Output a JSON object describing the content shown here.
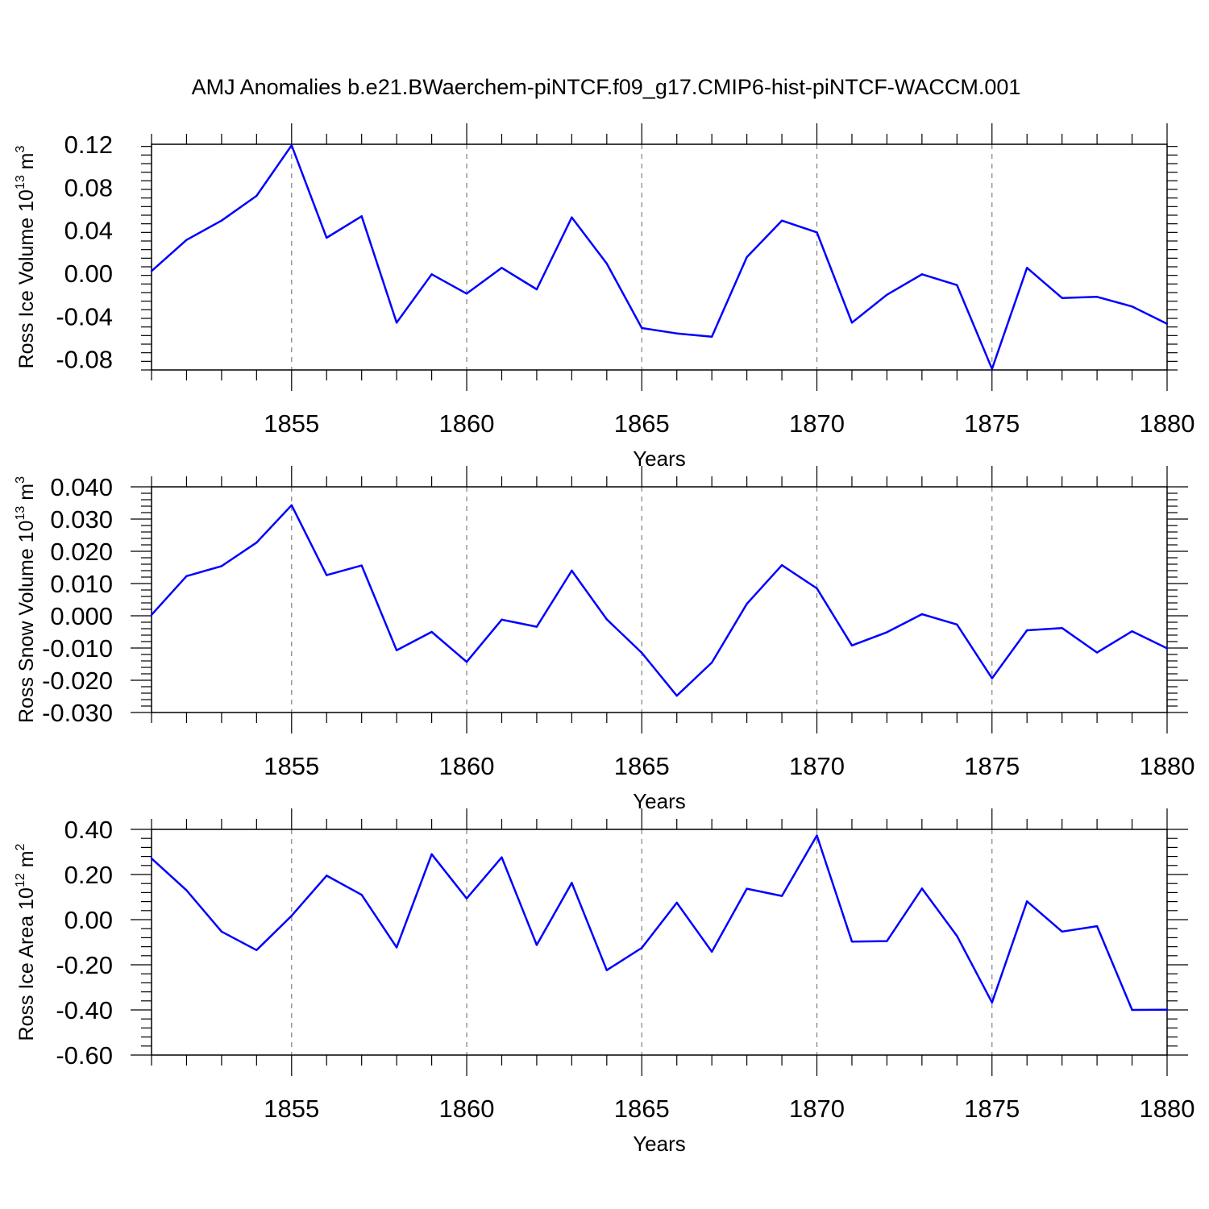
{
  "title": "AMJ Anomalies b.e21.BWaerchem-piNTCF.f09_g17.CMIP6-hist-piNTCF-WACCM.001",
  "colors": {
    "line": "#0000ff",
    "axis": "#000000",
    "grid": "#808080"
  },
  "chart_data": [
    {
      "type": "line",
      "ylabel": {
        "text": "Ross Ice Volume 10",
        "exp": "13",
        "unit": "m",
        "unit_exp": "3"
      },
      "xlabel": "Years",
      "xlim": [
        1851,
        1880
      ],
      "ylim": [
        -0.09,
        0.12
      ],
      "yticks": [
        -0.08,
        -0.04,
        0.0,
        0.04,
        0.08,
        0.12
      ],
      "ytick_labels": [
        "-0.08",
        "-0.04",
        "0.00",
        "0.04",
        "0.08",
        "0.12"
      ],
      "xticks": [
        1855,
        1860,
        1865,
        1870,
        1875,
        1880
      ],
      "xtick_labels": [
        "1855",
        "1860",
        "1865",
        "1870",
        "1875",
        "1880"
      ],
      "x": [
        1851,
        1852,
        1853,
        1854,
        1855,
        1856,
        1857,
        1858,
        1859,
        1860,
        1861,
        1862,
        1863,
        1864,
        1865,
        1866,
        1867,
        1868,
        1869,
        1870,
        1871,
        1872,
        1873,
        1874,
        1875,
        1876,
        1877,
        1878,
        1879,
        1880
      ],
      "values": [
        0.002,
        0.031,
        0.049,
        0.072,
        0.119,
        0.033,
        0.053,
        -0.046,
        -0.001,
        -0.019,
        0.005,
        -0.015,
        0.052,
        0.009,
        -0.051,
        -0.056,
        -0.059,
        0.015,
        0.049,
        0.038,
        -0.046,
        -0.02,
        -0.001,
        -0.011,
        -0.089,
        0.005,
        -0.023,
        -0.022,
        -0.031,
        -0.047
      ]
    },
    {
      "type": "line",
      "ylabel": {
        "text": "Ross Snow Volume 10",
        "exp": "13",
        "unit": "m",
        "unit_exp": "3"
      },
      "xlabel": "Years",
      "xlim": [
        1851,
        1880
      ],
      "ylim": [
        -0.03,
        0.04
      ],
      "yticks": [
        -0.03,
        -0.02,
        -0.01,
        0.0,
        0.01,
        0.02,
        0.03,
        0.04
      ],
      "ytick_labels": [
        "-0.030",
        "-0.020",
        "-0.010",
        "0.000",
        "0.010",
        "0.020",
        "0.030",
        "0.040"
      ],
      "xticks": [
        1855,
        1860,
        1865,
        1870,
        1875,
        1880
      ],
      "xtick_labels": [
        "1855",
        "1860",
        "1865",
        "1870",
        "1875",
        "1880"
      ],
      "x": [
        1851,
        1852,
        1853,
        1854,
        1855,
        1856,
        1857,
        1858,
        1859,
        1860,
        1861,
        1862,
        1863,
        1864,
        1865,
        1866,
        1867,
        1868,
        1869,
        1870,
        1871,
        1872,
        1873,
        1874,
        1875,
        1876,
        1877,
        1878,
        1879,
        1880
      ],
      "values": [
        0.0003,
        0.0123,
        0.0154,
        0.0227,
        0.0343,
        0.0126,
        0.0156,
        -0.0107,
        -0.005,
        -0.0143,
        -0.0012,
        -0.0034,
        0.014,
        -0.0011,
        -0.0115,
        -0.0248,
        -0.0145,
        0.0037,
        0.0157,
        0.0085,
        -0.0092,
        -0.0051,
        0.0005,
        -0.0027,
        -0.0194,
        -0.0045,
        -0.0038,
        -0.0114,
        -0.0048,
        -0.0101
      ]
    },
    {
      "type": "line",
      "ylabel": {
        "text": "Ross Ice Area 10",
        "exp": "12",
        "unit": "m",
        "unit_exp": "2"
      },
      "xlabel": "Years",
      "xlim": [
        1851,
        1880
      ],
      "ylim": [
        -0.6,
        0.4
      ],
      "yticks": [
        -0.6,
        -0.4,
        -0.2,
        0.0,
        0.2,
        0.4
      ],
      "ytick_labels": [
        "-0.60",
        "-0.40",
        "-0.20",
        "0.00",
        "0.20",
        "0.40"
      ],
      "xticks": [
        1855,
        1860,
        1865,
        1870,
        1875,
        1880
      ],
      "xtick_labels": [
        "1855",
        "1860",
        "1865",
        "1870",
        "1875",
        "1880"
      ],
      "x": [
        1851,
        1852,
        1853,
        1854,
        1855,
        1856,
        1857,
        1858,
        1859,
        1860,
        1861,
        1862,
        1863,
        1864,
        1865,
        1866,
        1867,
        1868,
        1869,
        1870,
        1871,
        1872,
        1873,
        1874,
        1875,
        1876,
        1877,
        1878,
        1879,
        1880
      ],
      "values": [
        0.271,
        0.13,
        -0.053,
        -0.135,
        0.017,
        0.195,
        0.11,
        -0.123,
        0.29,
        0.094,
        0.276,
        -0.112,
        0.163,
        -0.224,
        -0.125,
        0.075,
        -0.142,
        0.137,
        0.105,
        0.373,
        -0.097,
        -0.095,
        0.138,
        -0.072,
        -0.367,
        0.081,
        -0.053,
        -0.029,
        -0.4,
        -0.399
      ]
    }
  ]
}
